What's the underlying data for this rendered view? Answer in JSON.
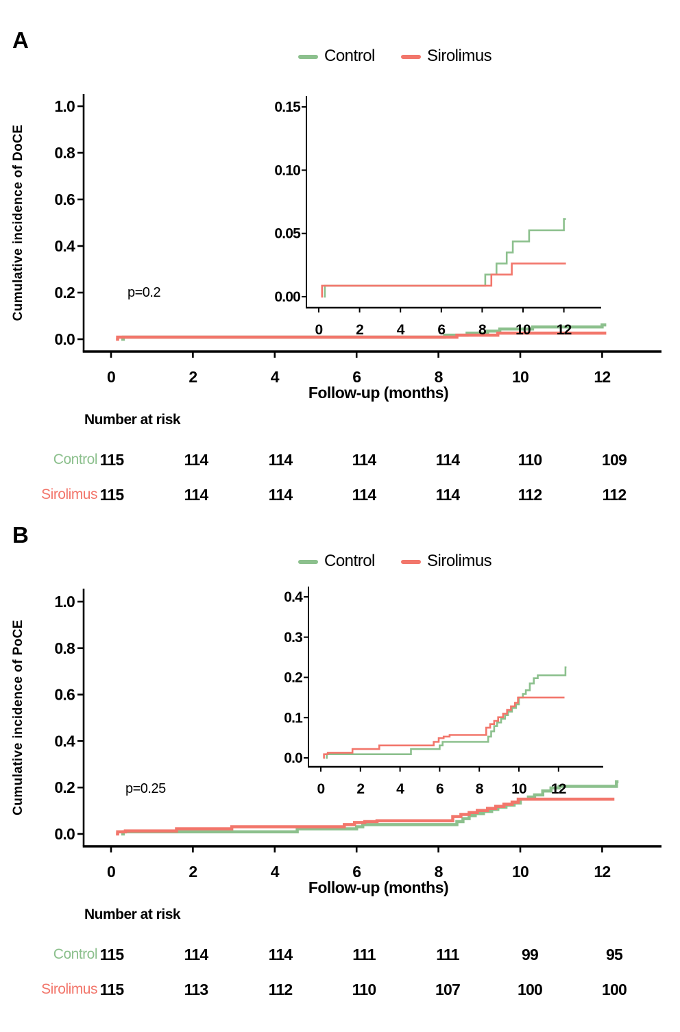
{
  "chart_data": [
    {
      "id": "A",
      "type": "line",
      "subtype": "step-cumulative-incidence",
      "title_label": "A",
      "xlabel": "Follow-up (months)",
      "ylabel": "Cumulative incidence of DoCE",
      "p_value": "p=0.2",
      "legend": {
        "position": "top-center",
        "entries": [
          "Control",
          "Sirolimus"
        ]
      },
      "colors": {
        "Control": "#8CC08D",
        "Sirolimus": "#F2766B"
      },
      "main_axis": {
        "xlim": [
          -0.7,
          13.5
        ],
        "ylim": [
          0,
          1.0
        ],
        "xticks": [
          0,
          2,
          4,
          6,
          8,
          10,
          12
        ],
        "yticks": [
          "0.0",
          "0.2",
          "0.4",
          "0.6",
          "0.8",
          "1.0"
        ],
        "grid": false
      },
      "inset_axis": {
        "xlim": [
          -0.6,
          13.8
        ],
        "ylim": [
          0,
          0.15
        ],
        "xticks": [
          0,
          2,
          4,
          6,
          8,
          10,
          12
        ],
        "yticks": [
          "0.00",
          "0.05",
          "0.10",
          "0.15"
        ],
        "grid": false
      },
      "series": [
        {
          "name": "Control",
          "color": "#8CC08D",
          "end_x": 12.1,
          "points": [
            [
              0.25,
              0
            ],
            [
              0.3,
              0.0087
            ],
            [
              8.15,
              0.0175
            ],
            [
              8.7,
              0.0262
            ],
            [
              9.2,
              0.035
            ],
            [
              9.5,
              0.0437
            ],
            [
              10.3,
              0.0525
            ],
            [
              12.0,
              0.0614
            ]
          ]
        },
        {
          "name": "Sirolimus",
          "color": "#F2766B",
          "end_x": 12.1,
          "points": [
            [
              0.12,
              0
            ],
            [
              0.16,
              0.0087
            ],
            [
              8.45,
              0.0175
            ],
            [
              9.45,
              0.0262
            ]
          ]
        }
      ],
      "number_at_risk": {
        "title": "Number at risk",
        "times": [
          0,
          2,
          4,
          6,
          8,
          10,
          12
        ],
        "rows": [
          {
            "name": "Control",
            "values": [
              115,
              114,
              114,
              114,
              114,
              110,
              109
            ]
          },
          {
            "name": "Sirolimus",
            "values": [
              115,
              114,
              114,
              114,
              114,
              112,
              112
            ]
          }
        ]
      }
    },
    {
      "id": "B",
      "type": "line",
      "subtype": "step-cumulative-incidence",
      "title_label": "B",
      "xlabel": "Follow-up (months)",
      "ylabel": "Cumulative incidence of PoCE",
      "p_value": "p=0.25",
      "legend": {
        "position": "top-center",
        "entries": [
          "Control",
          "Sirolimus"
        ]
      },
      "colors": {
        "Control": "#8CC08D",
        "Sirolimus": "#F2766B"
      },
      "main_axis": {
        "xlim": [
          -0.7,
          13.5
        ],
        "ylim": [
          0,
          1.0
        ],
        "xticks": [
          0,
          2,
          4,
          6,
          8,
          10,
          12
        ],
        "yticks": [
          "0.0",
          "0.2",
          "0.4",
          "0.6",
          "0.8",
          "1.0"
        ],
        "grid": false
      },
      "inset_axis": {
        "xlim": [
          -0.6,
          13.8
        ],
        "ylim": [
          0,
          0.4
        ],
        "xticks": [
          0,
          2,
          4,
          6,
          8,
          10,
          12
        ],
        "yticks": [
          "0.0",
          "0.1",
          "0.2",
          "0.3",
          "0.4"
        ],
        "grid": false
      },
      "series": [
        {
          "name": "Control",
          "color": "#8CC08D",
          "end_x": 12.4,
          "points": [
            [
              0.25,
              0
            ],
            [
              0.3,
              0.009
            ],
            [
              4.55,
              0.022
            ],
            [
              6.0,
              0.031
            ],
            [
              6.15,
              0.04
            ],
            [
              8.45,
              0.053
            ],
            [
              8.6,
              0.066
            ],
            [
              8.75,
              0.079
            ],
            [
              8.9,
              0.088
            ],
            [
              9.1,
              0.097
            ],
            [
              9.3,
              0.106
            ],
            [
              9.45,
              0.115
            ],
            [
              9.65,
              0.124
            ],
            [
              9.85,
              0.133
            ],
            [
              10.0,
              0.15
            ],
            [
              10.2,
              0.159
            ],
            [
              10.35,
              0.168
            ],
            [
              10.55,
              0.185
            ],
            [
              10.75,
              0.198
            ],
            [
              10.95,
              0.205
            ],
            [
              12.35,
              0.225
            ]
          ]
        },
        {
          "name": "Sirolimus",
          "color": "#F2766B",
          "end_x": 12.3,
          "points": [
            [
              0.12,
              0
            ],
            [
              0.16,
              0.009
            ],
            [
              0.35,
              0.013
            ],
            [
              1.6,
              0.022
            ],
            [
              2.95,
              0.031
            ],
            [
              5.7,
              0.04
            ],
            [
              5.95,
              0.049
            ],
            [
              6.2,
              0.053
            ],
            [
              6.5,
              0.057
            ],
            [
              8.35,
              0.075
            ],
            [
              8.55,
              0.084
            ],
            [
              8.75,
              0.092
            ],
            [
              8.95,
              0.101
            ],
            [
              9.2,
              0.11
            ],
            [
              9.4,
              0.119
            ],
            [
              9.6,
              0.128
            ],
            [
              9.8,
              0.137
            ],
            [
              9.95,
              0.15
            ]
          ]
        }
      ],
      "number_at_risk": {
        "title": "Number at risk",
        "times": [
          0,
          2,
          4,
          6,
          8,
          10,
          12
        ],
        "rows": [
          {
            "name": "Control",
            "values": [
              115,
              114,
              114,
              111,
              111,
              99,
              95
            ]
          },
          {
            "name": "Sirolimus",
            "values": [
              115,
              113,
              112,
              110,
              107,
              100,
              100
            ]
          }
        ]
      }
    }
  ]
}
